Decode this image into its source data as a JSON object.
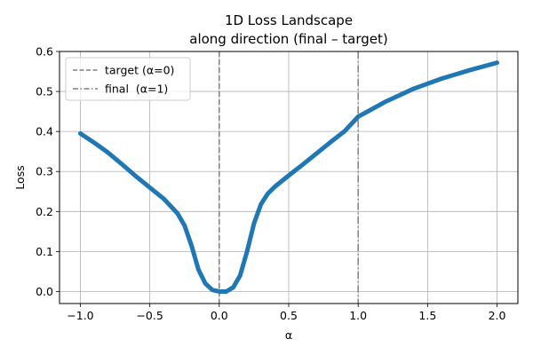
{
  "chart_data": {
    "type": "line",
    "title": "1D Loss Landscape",
    "subtitle": "along direction (final – target)",
    "xlabel": "α",
    "ylabel": "Loss",
    "xlim": [
      -1.15,
      2.15
    ],
    "ylim": [
      -0.03,
      0.6
    ],
    "xticks": [
      -1.0,
      -0.5,
      0.0,
      0.5,
      1.0,
      1.5,
      2.0
    ],
    "xtick_labels": [
      "−1.0",
      "−0.5",
      "0.0",
      "0.5",
      "1.0",
      "1.5",
      "2.0"
    ],
    "yticks": [
      0.0,
      0.1,
      0.2,
      0.3,
      0.4,
      0.5,
      0.6
    ],
    "ytick_labels": [
      "0.0",
      "0.1",
      "0.2",
      "0.3",
      "0.4",
      "0.5",
      "0.6"
    ],
    "grid": true,
    "legend_position": "top-left",
    "series": [
      {
        "color": "#1f77b4",
        "x": [
          -1.0,
          -0.9,
          -0.8,
          -0.7,
          -0.6,
          -0.5,
          -0.4,
          -0.3,
          -0.25,
          -0.2,
          -0.15,
          -0.1,
          -0.05,
          0.0,
          0.05,
          0.1,
          0.15,
          0.2,
          0.25,
          0.3,
          0.35,
          0.4,
          0.5,
          0.6,
          0.7,
          0.8,
          0.9,
          1.0,
          1.2,
          1.4,
          1.6,
          1.8,
          2.0
        ],
        "y": [
          0.395,
          0.372,
          0.347,
          0.318,
          0.288,
          0.26,
          0.232,
          0.195,
          0.165,
          0.115,
          0.055,
          0.02,
          0.004,
          0.0,
          0.0,
          0.01,
          0.04,
          0.1,
          0.17,
          0.218,
          0.245,
          0.262,
          0.29,
          0.317,
          0.345,
          0.373,
          0.4,
          0.437,
          0.475,
          0.507,
          0.532,
          0.553,
          0.572
        ]
      }
    ],
    "vlines": [
      {
        "x": 0,
        "label": "target (α=0)",
        "style": "dashed",
        "color": "#7f7f7f"
      },
      {
        "x": 1,
        "label": "final  (α=1)",
        "style": "dashdot",
        "color": "#7f7f7f"
      }
    ]
  }
}
